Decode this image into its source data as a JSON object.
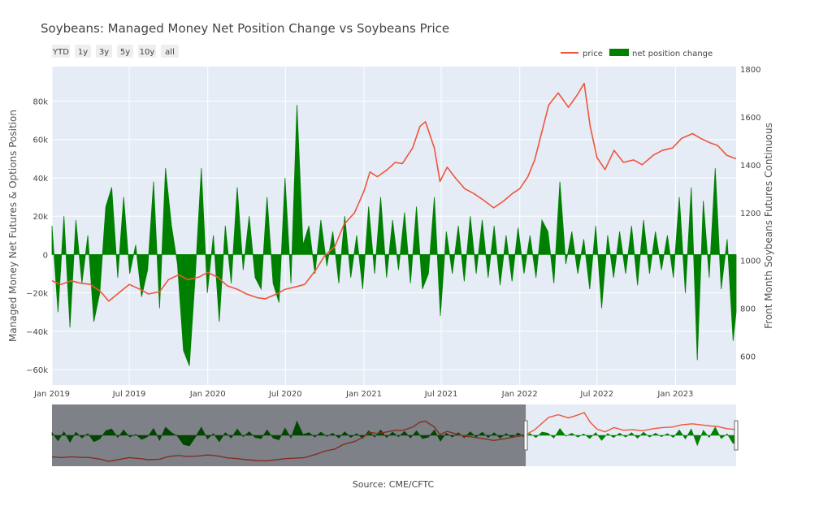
{
  "chart_data": {
    "type": "line",
    "title": "Soybeans: Managed Money Net Position Change vs Soybeans Price",
    "source": "Source: CME/CFTC",
    "range_buttons": [
      "YTD",
      "1y",
      "3y",
      "5y",
      "10y",
      "all"
    ],
    "ylabel_left": "Managed Money Net Futures & Options Position",
    "ylabel_right": "Front Month Soybeans Futures Continuous",
    "x_tick_labels": [
      "Jan 2019",
      "Jul 2019",
      "Jan 2020",
      "Jul 2020",
      "Jan 2021",
      "Jul 2021",
      "Jan 2022",
      "Jul 2022",
      "Jan 2023"
    ],
    "x_tick_dates": [
      "2019-01-01",
      "2019-07-01",
      "2020-01-01",
      "2020-07-01",
      "2021-01-01",
      "2021-07-01",
      "2022-01-01",
      "2022-07-01",
      "2023-01-01"
    ],
    "xlim": [
      "2019-01-01",
      "2023-05-23"
    ],
    "y_left_ticks": [
      "80k",
      "60k",
      "40k",
      "20k",
      "0",
      "−20k",
      "−40k",
      "−60k"
    ],
    "y_left_tick_values": [
      80000,
      60000,
      40000,
      20000,
      0,
      -20000,
      -40000,
      -60000
    ],
    "ylim_left": [
      -68000,
      98000
    ],
    "y_right_ticks": [
      "1800",
      "1600",
      "1400",
      "1200",
      "1000",
      "800",
      "600"
    ],
    "y_right_tick_values": [
      1800,
      1600,
      1400,
      1200,
      1000,
      800,
      600
    ],
    "ylim_right": [
      480,
      1810
    ],
    "grid": true,
    "legend_position": "top-right",
    "series": [
      {
        "name": "price",
        "color": "#ef553b",
        "axis": "right",
        "type": "line",
        "x": [
          "2019-01-01",
          "2019-01-22",
          "2019-02-15",
          "2019-03-10",
          "2019-04-01",
          "2019-04-25",
          "2019-05-14",
          "2019-06-10",
          "2019-07-01",
          "2019-07-26",
          "2019-08-15",
          "2019-09-10",
          "2019-10-01",
          "2019-10-25",
          "2019-11-15",
          "2019-12-10",
          "2020-01-01",
          "2020-01-25",
          "2020-02-15",
          "2020-03-10",
          "2020-04-01",
          "2020-04-25",
          "2020-05-15",
          "2020-06-10",
          "2020-07-01",
          "2020-07-25",
          "2020-08-15",
          "2020-09-10",
          "2020-10-01",
          "2020-10-25",
          "2020-11-15",
          "2020-12-10",
          "2021-01-01",
          "2021-01-15",
          "2021-02-01",
          "2021-02-25",
          "2021-03-15",
          "2021-04-01",
          "2021-04-25",
          "2021-05-12",
          "2021-05-25",
          "2021-06-15",
          "2021-06-28",
          "2021-07-15",
          "2021-08-01",
          "2021-08-25",
          "2021-09-15",
          "2021-10-10",
          "2021-11-01",
          "2021-11-25",
          "2021-12-15",
          "2022-01-01",
          "2022-01-20",
          "2022-02-05",
          "2022-02-25",
          "2022-03-10",
          "2022-04-01",
          "2022-04-25",
          "2022-05-15",
          "2022-06-01",
          "2022-06-15",
          "2022-07-01",
          "2022-07-20",
          "2022-08-10",
          "2022-09-01",
          "2022-09-25",
          "2022-10-15",
          "2022-11-10",
          "2022-12-01",
          "2022-12-25",
          "2023-01-15",
          "2023-02-10",
          "2023-03-01",
          "2023-03-25",
          "2023-04-10",
          "2023-05-01",
          "2023-05-23"
        ],
        "y": [
          915,
          900,
          915,
          905,
          900,
          870,
          830,
          870,
          900,
          880,
          860,
          870,
          920,
          940,
          920,
          930,
          950,
          930,
          895,
          880,
          860,
          845,
          840,
          860,
          880,
          890,
          900,
          960,
          1020,
          1060,
          1150,
          1200,
          1290,
          1370,
          1350,
          1380,
          1410,
          1405,
          1470,
          1560,
          1580,
          1470,
          1330,
          1390,
          1350,
          1300,
          1280,
          1250,
          1220,
          1250,
          1280,
          1300,
          1350,
          1420,
          1560,
          1650,
          1700,
          1640,
          1690,
          1740,
          1560,
          1430,
          1380,
          1460,
          1410,
          1420,
          1400,
          1440,
          1460,
          1470,
          1510,
          1530,
          1510,
          1490,
          1480,
          1440,
          1425
        ]
      },
      {
        "name": "net position change",
        "color": "#008000",
        "axis": "left",
        "type": "area",
        "x": [
          "2019-01-01",
          "2019-01-15",
          "2019-01-29",
          "2019-02-12",
          "2019-02-26",
          "2019-03-12",
          "2019-03-26",
          "2019-04-09",
          "2019-04-23",
          "2019-05-07",
          "2019-05-21",
          "2019-06-04",
          "2019-06-18",
          "2019-07-02",
          "2019-07-16",
          "2019-07-30",
          "2019-08-13",
          "2019-08-27",
          "2019-09-10",
          "2019-09-24",
          "2019-10-08",
          "2019-10-22",
          "2019-11-05",
          "2019-11-19",
          "2019-12-03",
          "2019-12-17",
          "2019-12-31",
          "2020-01-14",
          "2020-01-28",
          "2020-02-11",
          "2020-02-25",
          "2020-03-10",
          "2020-03-24",
          "2020-04-07",
          "2020-04-21",
          "2020-05-05",
          "2020-05-19",
          "2020-06-02",
          "2020-06-16",
          "2020-06-30",
          "2020-07-14",
          "2020-07-28",
          "2020-08-11",
          "2020-08-25",
          "2020-09-08",
          "2020-09-22",
          "2020-10-06",
          "2020-10-20",
          "2020-11-03",
          "2020-11-17",
          "2020-12-01",
          "2020-12-15",
          "2020-12-29",
          "2021-01-12",
          "2021-01-26",
          "2021-02-09",
          "2021-02-23",
          "2021-03-09",
          "2021-03-23",
          "2021-04-06",
          "2021-04-20",
          "2021-05-04",
          "2021-05-18",
          "2021-06-01",
          "2021-06-15",
          "2021-06-29",
          "2021-07-13",
          "2021-07-27",
          "2021-08-10",
          "2021-08-24",
          "2021-09-07",
          "2021-09-21",
          "2021-10-05",
          "2021-10-19",
          "2021-11-02",
          "2021-11-16",
          "2021-11-30",
          "2021-12-14",
          "2021-12-28",
          "2022-01-11",
          "2022-01-25",
          "2022-02-08",
          "2022-02-22",
          "2022-03-08",
          "2022-03-22",
          "2022-04-05",
          "2022-04-19",
          "2022-05-03",
          "2022-05-17",
          "2022-05-31",
          "2022-06-14",
          "2022-06-28",
          "2022-07-12",
          "2022-07-26",
          "2022-08-09",
          "2022-08-23",
          "2022-09-06",
          "2022-09-20",
          "2022-10-04",
          "2022-10-18",
          "2022-11-01",
          "2022-11-15",
          "2022-11-29",
          "2022-12-13",
          "2022-12-27",
          "2023-01-10",
          "2023-01-24",
          "2023-02-07",
          "2023-02-21",
          "2023-03-07",
          "2023-03-21",
          "2023-04-04",
          "2023-04-18",
          "2023-05-02",
          "2023-05-16",
          "2023-05-23"
        ],
        "y": [
          15000,
          -30000,
          20000,
          -38000,
          18000,
          -15000,
          10000,
          -35000,
          -20000,
          25000,
          35000,
          -12000,
          30000,
          -10000,
          5000,
          -22000,
          -8000,
          38000,
          -28000,
          45000,
          15000,
          -5000,
          -50000,
          -58000,
          -10000,
          45000,
          -20000,
          10000,
          -35000,
          15000,
          -15000,
          35000,
          -8000,
          20000,
          -12000,
          -18000,
          30000,
          -15000,
          -25000,
          40000,
          -15000,
          78000,
          5000,
          15000,
          -10000,
          18000,
          -6000,
          12000,
          -15000,
          20000,
          -12000,
          10000,
          -18000,
          25000,
          -10000,
          30000,
          -12000,
          18000,
          -8000,
          22000,
          -15000,
          25000,
          -18000,
          -10000,
          30000,
          -32000,
          12000,
          -10000,
          15000,
          -14000,
          20000,
          -10000,
          18000,
          -12000,
          15000,
          -16000,
          10000,
          -14000,
          14000,
          -10000,
          10000,
          -12000,
          18000,
          12000,
          -15000,
          38000,
          -5000,
          12000,
          -10000,
          8000,
          -18000,
          15000,
          -28000,
          10000,
          -12000,
          12000,
          -10000,
          15000,
          -16000,
          18000,
          -10000,
          12000,
          -8000,
          10000,
          -12000,
          30000,
          -20000,
          35000,
          -55000,
          28000,
          -12000,
          45000,
          -18000,
          8000,
          -45000,
          -30000
        ]
      }
    ],
    "rangeslider_window": [
      "2022-01-15",
      "2023-05-23"
    ]
  }
}
